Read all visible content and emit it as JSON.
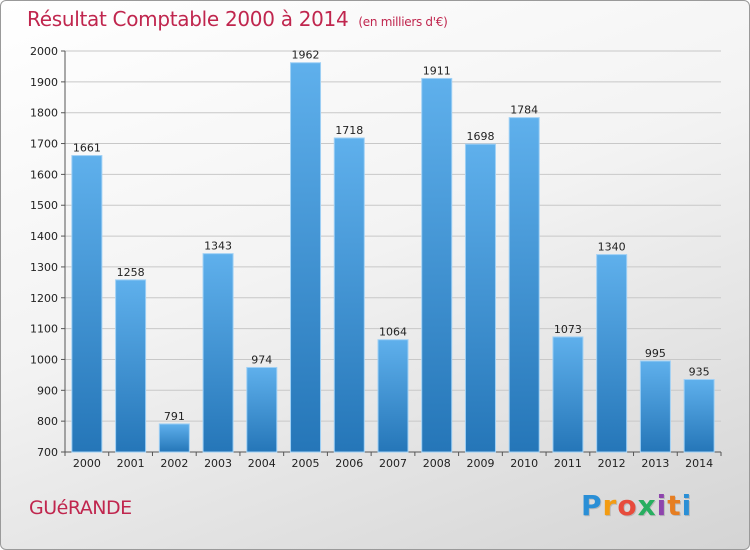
{
  "chart_data": {
    "type": "bar",
    "title": "Résultat Comptable 2000 à 2014",
    "subtitle": "(en milliers d'€)",
    "categories": [
      "2000",
      "2001",
      "2002",
      "2003",
      "2004",
      "2005",
      "2006",
      "2007",
      "2008",
      "2009",
      "2010",
      "2011",
      "2012",
      "2013",
      "2014"
    ],
    "values": [
      1661,
      1258,
      791,
      1343,
      974,
      1962,
      1718,
      1064,
      1911,
      1698,
      1784,
      1073,
      1340,
      995,
      935
    ],
    "ylim": [
      700,
      2000
    ],
    "yticks": [
      700,
      800,
      900,
      1000,
      1100,
      1200,
      1300,
      1400,
      1500,
      1600,
      1700,
      1800,
      1900,
      2000
    ],
    "grid": true,
    "xlabel": "",
    "ylabel": ""
  },
  "footer": {
    "city": "GUéRANDE",
    "logo_letters": [
      "P",
      "r",
      "o",
      "x",
      "i",
      "t",
      "i"
    ],
    "logo_colors": [
      "#2a8fd6",
      "#f39c12",
      "#e74c3c",
      "#27ae60",
      "#8e44ad",
      "#e67e22",
      "#2a8fd6"
    ]
  },
  "colors": {
    "bar_top": "#5fb0ec",
    "bar_bottom": "#2576b8",
    "accent": "#c0264e"
  }
}
